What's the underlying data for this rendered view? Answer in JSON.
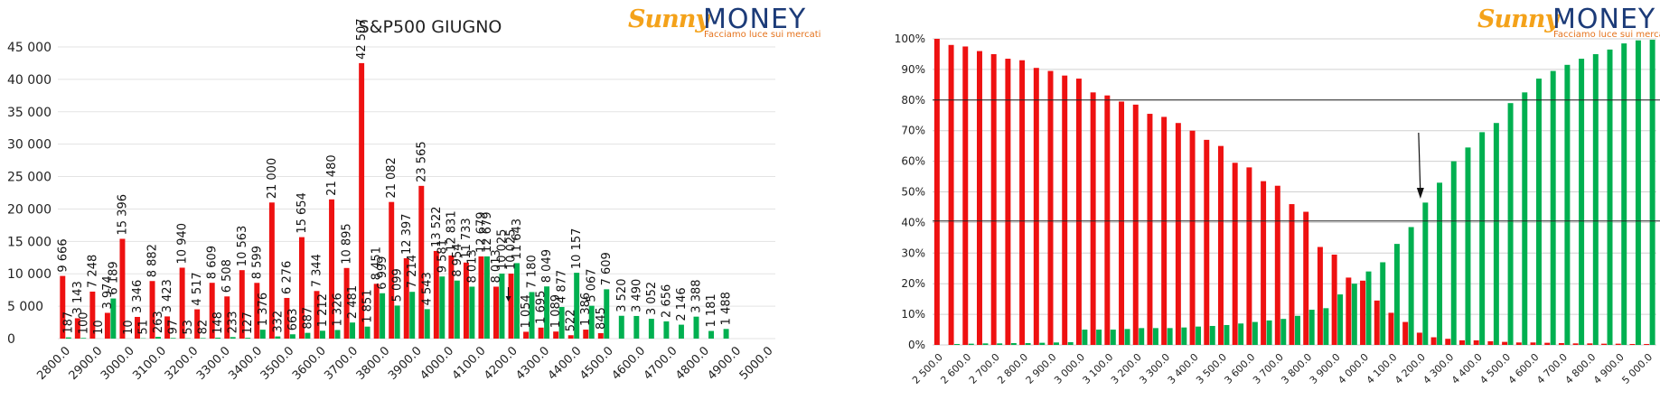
{
  "logo": {
    "brand_left": "Sunny",
    "brand_right": "MONEY",
    "tagline": "Facciamo luce sui mercati"
  },
  "chart_data": [
    {
      "type": "bar",
      "title": "S&P500 GIUGNO",
      "categories": [
        "2800.0",
        "2850.0",
        "2900.0",
        "2950.0",
        "3000.0",
        "3050.0",
        "3100.0",
        "3150.0",
        "3200.0",
        "3250.0",
        "3300.0",
        "3350.0",
        "3400.0",
        "3450.0",
        "3500.0",
        "3550.0",
        "3600.0",
        "3650.0",
        "3700.0",
        "3750.0",
        "3800.0",
        "3850.0",
        "3900.0",
        "3950.0",
        "4000.0",
        "4050.0",
        "4100.0",
        "4125.0",
        "4150.0",
        "4175.0",
        "4200.0",
        "4225.0",
        "4250.0",
        "4300.0",
        "4350.0",
        "4400.0",
        "4450.0",
        "4500.0",
        "4550.0",
        "4600.0",
        "4650.0",
        "4700.0",
        "4750.0",
        "4800.0",
        "4850.0",
        "4900.0",
        "4950.0",
        "5000.0"
      ],
      "x_tick_labels": [
        "2800.0",
        "2900.0",
        "3000.0",
        "3100.0",
        "3200.0",
        "3300.0",
        "3400.0",
        "3500.0",
        "3600.0",
        "3700.0",
        "3800.0",
        "3900.0",
        "4000.0",
        "4100.0",
        "4200.0",
        "4300.0",
        "4400.0",
        "4500.0",
        "4600.0",
        "4700.0",
        "4800.0",
        "4900.0",
        "5000.0"
      ],
      "series": [
        {
          "color": "#ee1111",
          "values": [
            9666,
            3143,
            7248,
            3974,
            15396,
            3346,
            8882,
            3423,
            10940,
            4517,
            8609,
            6508,
            10563,
            8599,
            21000,
            6276,
            15654,
            7344,
            21480,
            10895,
            42507,
            8451,
            21082,
            12397,
            23565,
            13522,
            12831,
            11733,
            12679,
            8013,
            10025,
            1054,
            1695,
            1089,
            522,
            1386,
            845,
            1,
            1,
            1,
            1,
            1,
            1,
            1,
            1,
            1,
            1,
            1
          ]
        },
        {
          "color": "#00b050",
          "values": [
            187,
            100,
            10,
            6189,
            10,
            51,
            263,
            97,
            53,
            82,
            148,
            233,
            127,
            1376,
            332,
            663,
            887,
            1212,
            1326,
            2481,
            1851,
            6999,
            5099,
            7214,
            4543,
            9581,
            8954,
            8013,
            12679,
            10025,
            11643,
            7180,
            8049,
            4877,
            10157,
            5067,
            7609,
            3520,
            3490,
            3052,
            2656,
            2146,
            3388,
            1181,
            1488,
            1,
            1,
            1
          ]
        }
      ],
      "data_labels_red": [
        "9 666",
        "3 143",
        "7 248",
        "3 974",
        "15 396",
        "3 346",
        "8 882",
        "3 423",
        "10 940",
        "4 517",
        "8 609",
        "6 508",
        "10 563",
        "8 599",
        "21 000",
        "6 276",
        "15 654",
        "7 344",
        "21 480",
        "10 895",
        "42 507",
        "8 451",
        "21 082",
        "12 397",
        "23 565",
        "13 522",
        "12 831",
        "11 733",
        "12 679",
        "8 013",
        "10 025",
        "1 054",
        "1 695",
        "1 089",
        "522",
        "1 386",
        "845"
      ],
      "data_labels_green": [
        "187",
        "100",
        "10",
        "6 189",
        "10",
        "51",
        "263",
        "97",
        "53",
        "82",
        "148",
        "233",
        "127",
        "1 376",
        "332",
        "663",
        "887",
        "1 212",
        "1 326",
        "2 481",
        "1 851",
        "6 999",
        "5 099",
        "7 214",
        "4 543",
        "9 581",
        "8 954",
        "8 013",
        "12 679",
        "10 025",
        "11 643",
        "7 180",
        "8 049",
        "4 877",
        "10 157",
        "5 067",
        "7 609",
        "3 520",
        "3 490",
        "3 052",
        "2 656",
        "2 146",
        "3 388",
        "1 181",
        "1 488"
      ],
      "yticks": [
        "0",
        "5 000",
        "10 000",
        "15 000",
        "20 000",
        "25 000",
        "30 000",
        "35 000",
        "40 000",
        "45 000"
      ],
      "ylim": [
        0,
        45000
      ],
      "grid": true,
      "annotation": "arrow at 4200.0"
    },
    {
      "type": "bar",
      "categories": [
        "2 500.0",
        "2 550.0",
        "2 600.0",
        "2 650.0",
        "2 700.0",
        "2 750.0",
        "2 800.0",
        "2 850.0",
        "2 900.0",
        "2 950.0",
        "3 000.0",
        "3 050.0",
        "3 100.0",
        "3 150.0",
        "3 200.0",
        "3 250.0",
        "3 300.0",
        "3 350.0",
        "3 400.0",
        "3 450.0",
        "3 500.0",
        "3 550.0",
        "3 600.0",
        "3 650.0",
        "3 700.0",
        "3 750.0",
        "3 800.0",
        "3 850.0",
        "3 900.0",
        "3 950.0",
        "4 000.0",
        "4 050.0",
        "4 100.0",
        "4 150.0",
        "4 200.0",
        "4 250.0",
        "4 300.0",
        "4 350.0",
        "4 400.0",
        "4 450.0",
        "4 500.0",
        "4 550.0",
        "4 600.0",
        "4 650.0",
        "4 700.0",
        "4 750.0",
        "4 800.0",
        "4 850.0",
        "4 900.0",
        "4 950.0",
        "5 000.0"
      ],
      "x_tick_labels": [
        "2 500.0",
        "2 600.0",
        "2 700.0",
        "2 800.0",
        "2 900.0",
        "3 000.0",
        "3 100.0",
        "3 200.0",
        "3 300.0",
        "3 400.0",
        "3 500.0",
        "3 600.0",
        "3 700.0",
        "3 800.0",
        "3 900.0",
        "4 000.0",
        "4 100.0",
        "4 200.0",
        "4 300.0",
        "4 400.0",
        "4 500.0",
        "4 600.0",
        "4 700.0",
        "4 800.0",
        "4 900.0",
        "5 000.0"
      ],
      "series": [
        {
          "color": "#ee1111",
          "values": [
            100,
            98,
            97.5,
            96,
            95,
            93.5,
            93,
            90.5,
            89.5,
            88,
            87,
            82.5,
            81.5,
            79.5,
            78.5,
            75.5,
            74.5,
            72.5,
            70,
            67,
            65,
            59.5,
            58,
            53.5,
            52,
            46,
            43.5,
            32,
            29.5,
            22,
            21,
            14.5,
            10.5,
            7.5,
            4,
            2.5,
            2,
            1.5,
            1.5,
            1.2,
            1,
            0.8,
            0.8,
            0.7,
            0.6,
            0.5,
            0.5,
            0.4,
            0.4,
            0.3,
            0.3
          ]
        },
        {
          "color": "#00b050",
          "values": [
            0,
            0.3,
            0.4,
            0.5,
            0.5,
            0.6,
            0.6,
            0.7,
            0.8,
            0.9,
            5,
            5,
            5,
            5.2,
            5.5,
            5.5,
            5.5,
            5.7,
            6,
            6.2,
            6.5,
            7,
            7.5,
            8,
            8.5,
            9.5,
            11.5,
            12,
            16.5,
            20,
            24,
            27,
            33,
            38.5,
            46.5,
            53,
            60,
            64.5,
            69.5,
            72.5,
            79,
            82.5,
            87,
            89.5,
            91.5,
            93.5,
            95,
            96.5,
            98.5,
            99.5,
            99.7
          ]
        }
      ],
      "yticks": [
        "0%",
        "10%",
        "20%",
        "30%",
        "40%",
        "50%",
        "60%",
        "70%",
        "80%",
        "90%",
        "100%"
      ],
      "ylim": [
        0,
        100
      ],
      "grid": true,
      "reference_lines": [
        80,
        40.5
      ],
      "annotation": "arrow at 4 200.0"
    }
  ]
}
